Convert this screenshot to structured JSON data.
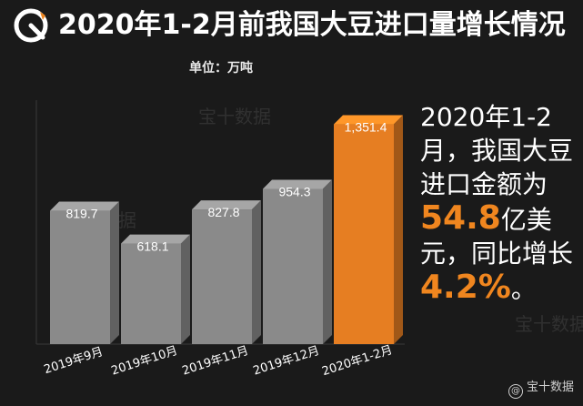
{
  "header": {
    "title": "2020年1-2月前我国大豆进口量增长情况",
    "unit_label": "单位：万吨"
  },
  "chart_data": {
    "type": "bar",
    "title": "2020年1-2月前我国大豆进口量增长情况",
    "ylabel": "单位：万吨",
    "categories": [
      "2019年9月",
      "2019年10月",
      "2019年11月",
      "2019年12月",
      "2020年1-2月"
    ],
    "values": [
      819.7,
      618.1,
      827.8,
      954.3,
      1351.4
    ],
    "value_labels": [
      "819.7",
      "618.1",
      "827.8",
      "954.3",
      "1,351.4"
    ],
    "ylim": [
      0,
      1500
    ],
    "grid": false,
    "colors": {
      "default_bar": "#8a8a8a",
      "highlight_bar": "#e67e22",
      "highlight_index": 4
    }
  },
  "annotation": {
    "line1": "2020年1-2",
    "line2": "月，我国大豆",
    "line3": "进口金额为",
    "value": "54.8",
    "line4_suffix": "亿美",
    "line5": "元，同比增长",
    "percent": "4.2%",
    "end": "。"
  },
  "watermarks": [
    "宝十数据",
    "宝十数据",
    "宝十数据"
  ],
  "footer": {
    "brand": "宝十数据"
  }
}
